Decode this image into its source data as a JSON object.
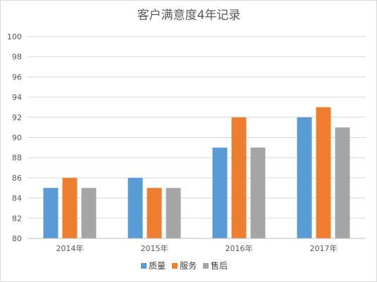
{
  "chart_data": {
    "type": "bar",
    "title": "客户满意度4年记录",
    "categories": [
      "2014年",
      "2015年",
      "2016年",
      "2017年"
    ],
    "series": [
      {
        "name": "质量",
        "values": [
          85,
          86,
          89,
          92
        ],
        "color": "#5b9bd5"
      },
      {
        "name": "服务",
        "values": [
          86,
          85,
          92,
          93
        ],
        "color": "#ed7d31"
      },
      {
        "name": "售后",
        "values": [
          85,
          85,
          89,
          91
        ],
        "color": "#a5a5a5"
      }
    ],
    "ylim": [
      80,
      100
    ],
    "yticks": [
      "80",
      "82",
      "84",
      "86",
      "88",
      "90",
      "92",
      "94",
      "96",
      "98",
      "100"
    ],
    "grid": true,
    "legend_position": "bottom"
  }
}
